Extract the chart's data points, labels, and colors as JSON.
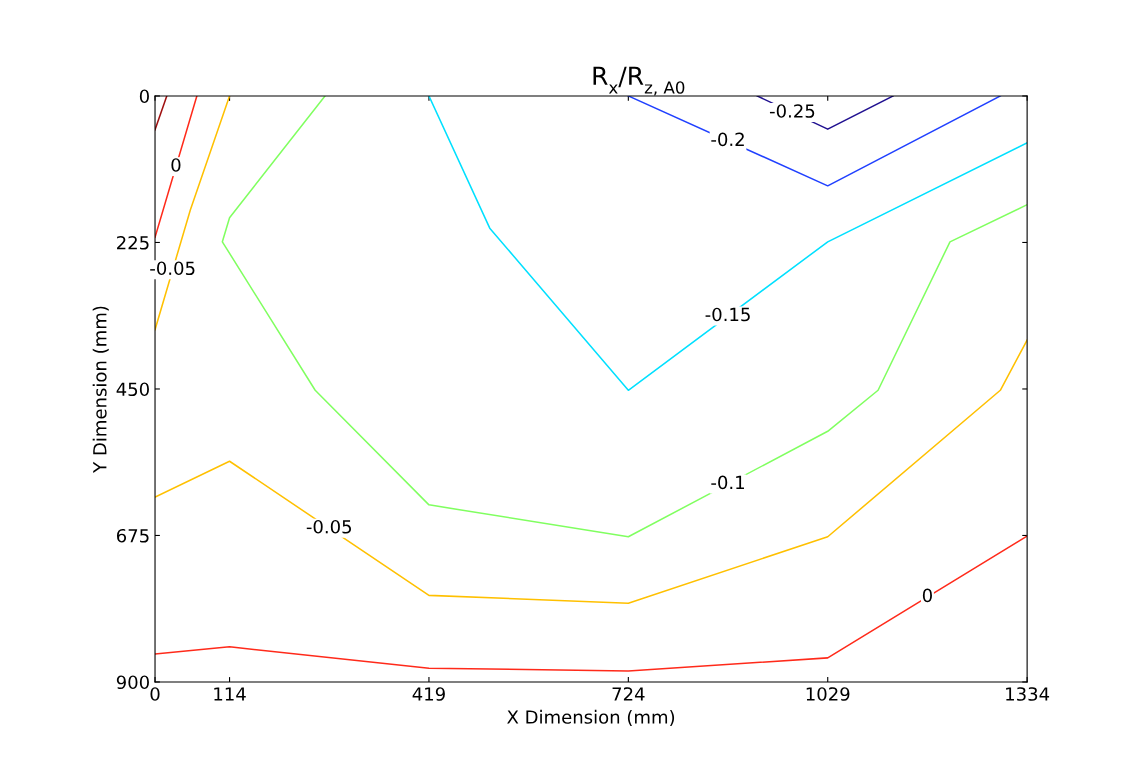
{
  "chart_data": {
    "type": "line",
    "title": "R$_{x}$/R$_{z, A0}$",
    "xlabel": "X Dimension (mm)",
    "ylabel": "Y Dimension (mm)",
    "xlim": [
      0,
      1334
    ],
    "xticks": [
      0,
      114,
      419,
      724,
      1029,
      1334
    ],
    "ylim": [
      900,
      0
    ],
    "yticks": [
      0,
      225,
      450,
      675,
      900
    ],
    "grid": false,
    "legend": false,
    "marker": "none",
    "line_style": "solid",
    "series": [
      {
        "name": "0",
        "color": "#ff2a1a",
        "x": [
          0,
          114,
          419,
          724,
          1029,
          1334
        ],
        "values": [
          857,
          846,
          879,
          883,
          863,
          676
        ]
      },
      {
        "name": "-0.05",
        "color": "#ffc000",
        "x": [
          0,
          114,
          419,
          724,
          1029,
          1293,
          1334
        ],
        "values": [
          616,
          561,
          767,
          779,
          677,
          452,
          375
        ]
      },
      {
        "name": "-0.1",
        "color": "#80ff60",
        "x": [
          260,
          114,
          103,
          245,
          419,
          724,
          1029,
          1106,
          1216,
          1334
        ],
        "values": [
          0,
          187,
          224,
          452,
          628,
          677,
          515,
          452,
          224,
          167
        ]
      },
      {
        "name": "-0.15",
        "color": "#00e0ff",
        "x": [
          419,
          512,
          724,
          1029,
          1334
        ],
        "values": [
          0,
          203,
          452,
          224,
          72
        ]
      },
      {
        "name": "-0.2",
        "color": "#2040ff",
        "x": [
          724,
          1029,
          1293
        ],
        "values": [
          0,
          138,
          0
        ]
      },
      {
        "name": "-0.25",
        "color": "#201090",
        "x": [
          921,
          1029,
          1129
        ],
        "values": [
          0,
          51,
          0
        ]
      },
      {
        "name": "0",
        "color": "#ff2a1a",
        "x": [
          0,
          64
        ],
        "values": [
          217,
          0
        ]
      },
      {
        "name": "-0.05",
        "color": "#ffc000",
        "x": [
          0,
          54,
          114
        ],
        "values": [
          359,
          175,
          0
        ]
      },
      {
        "color": "#a01010",
        "x": [
          0,
          18
        ],
        "values": [
          52,
          0
        ]
      }
    ]
  }
}
